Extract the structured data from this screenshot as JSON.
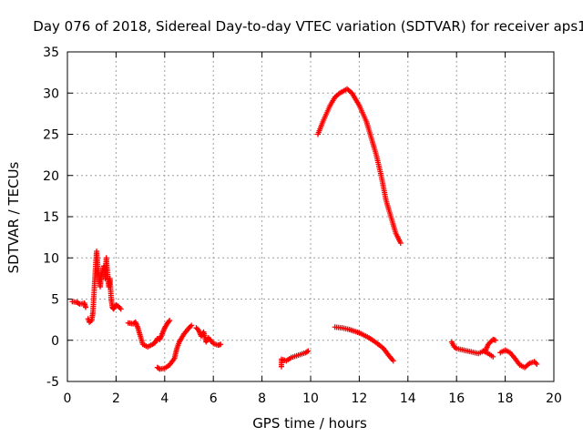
{
  "chart_data": {
    "type": "scatter",
    "title": "Day 076 of 2018, Sidereal Day-to-day VTEC variation (SDTVAR) for receiver aps1",
    "xlabel": "GPS time / hours",
    "ylabel": "SDTVAR / TECUs",
    "xlim": [
      0,
      20
    ],
    "ylim": [
      -5,
      35
    ],
    "xticks": [
      "0",
      "2",
      "4",
      "6",
      "8",
      "10",
      "12",
      "14",
      "16",
      "18",
      "20"
    ],
    "yticks": [
      "-5",
      "0",
      "5",
      "10",
      "15",
      "20",
      "25",
      "30",
      "35"
    ],
    "grid": true,
    "marker": "plus",
    "color": "#ff0000",
    "series": [
      {
        "name": "seg1",
        "points": [
          [
            0.2,
            4.7
          ],
          [
            0.4,
            4.6
          ],
          [
            0.5,
            4.4
          ],
          [
            0.7,
            4.5
          ],
          [
            0.75,
            4.0
          ]
        ]
      },
      {
        "name": "seg2",
        "points": [
          [
            0.85,
            2.6
          ],
          [
            0.9,
            2.2
          ],
          [
            1.0,
            2.4
          ],
          [
            1.05,
            3.4
          ],
          [
            1.1,
            6.0
          ],
          [
            1.15,
            8.5
          ],
          [
            1.2,
            10.8
          ],
          [
            1.25,
            9.0
          ],
          [
            1.3,
            7.5
          ],
          [
            1.35,
            6.5
          ],
          [
            1.4,
            8.0
          ],
          [
            1.5,
            9.0
          ],
          [
            1.55,
            7.5
          ],
          [
            1.6,
            10.0
          ],
          [
            1.65,
            8.0
          ],
          [
            1.7,
            6.5
          ],
          [
            1.75,
            7.5
          ],
          [
            1.8,
            5.0
          ],
          [
            1.85,
            4.0
          ],
          [
            1.9,
            3.8
          ],
          [
            2.0,
            4.3
          ],
          [
            2.1,
            4.1
          ],
          [
            2.2,
            3.8
          ]
        ]
      },
      {
        "name": "seg3",
        "points": [
          [
            2.5,
            2.1
          ],
          [
            2.7,
            2.0
          ],
          [
            2.8,
            2.2
          ],
          [
            2.9,
            1.5
          ],
          [
            3.0,
            0.5
          ],
          [
            3.1,
            -0.5
          ],
          [
            3.3,
            -0.8
          ],
          [
            3.5,
            -0.5
          ],
          [
            3.6,
            -0.3
          ],
          [
            3.7,
            0.2
          ],
          [
            3.8,
            0.1
          ],
          [
            3.9,
            0.8
          ],
          [
            4.0,
            1.5
          ],
          [
            4.1,
            2.0
          ],
          [
            4.2,
            2.4
          ]
        ]
      },
      {
        "name": "seg4",
        "points": [
          [
            3.7,
            -3.3
          ],
          [
            3.8,
            -3.5
          ],
          [
            4.0,
            -3.4
          ],
          [
            4.2,
            -3.0
          ],
          [
            4.4,
            -2.2
          ],
          [
            4.5,
            -1.0
          ],
          [
            4.6,
            -0.2
          ],
          [
            4.7,
            0.3
          ],
          [
            4.8,
            0.8
          ],
          [
            5.0,
            1.5
          ],
          [
            5.1,
            1.8
          ]
        ]
      },
      {
        "name": "seg5",
        "points": [
          [
            5.3,
            1.5
          ],
          [
            5.4,
            1.2
          ],
          [
            5.5,
            0.5
          ],
          [
            5.6,
            1.0
          ],
          [
            5.7,
            -0.2
          ],
          [
            5.8,
            0.3
          ],
          [
            6.0,
            -0.4
          ],
          [
            6.2,
            -0.6
          ],
          [
            6.3,
            -0.5
          ]
        ]
      },
      {
        "name": "seg6",
        "points": [
          [
            8.8,
            -3.2
          ],
          [
            8.8,
            -2.3
          ],
          [
            9.0,
            -2.5
          ],
          [
            9.2,
            -2.1
          ],
          [
            9.5,
            -1.8
          ],
          [
            9.8,
            -1.5
          ],
          [
            9.9,
            -1.3
          ]
        ]
      },
      {
        "name": "seg7",
        "points": [
          [
            10.3,
            25.0
          ],
          [
            10.5,
            26.5
          ],
          [
            10.8,
            28.5
          ],
          [
            11.0,
            29.5
          ],
          [
            11.2,
            30.0
          ],
          [
            11.5,
            30.5
          ],
          [
            11.7,
            30.0
          ],
          [
            12.0,
            28.5
          ],
          [
            12.3,
            26.5
          ],
          [
            12.5,
            24.5
          ],
          [
            12.7,
            22.5
          ],
          [
            12.9,
            20.0
          ],
          [
            13.1,
            17.0
          ],
          [
            13.3,
            15.0
          ],
          [
            13.5,
            13.0
          ],
          [
            13.7,
            11.8
          ]
        ]
      },
      {
        "name": "seg8",
        "points": [
          [
            11.0,
            1.6
          ],
          [
            11.3,
            1.5
          ],
          [
            11.6,
            1.3
          ],
          [
            12.0,
            0.9
          ],
          [
            12.4,
            0.3
          ],
          [
            12.7,
            -0.3
          ],
          [
            13.0,
            -1.0
          ],
          [
            13.2,
            -1.8
          ],
          [
            13.4,
            -2.5
          ]
        ]
      },
      {
        "name": "seg9",
        "points": [
          [
            15.8,
            -0.2
          ],
          [
            15.9,
            -0.8
          ],
          [
            16.0,
            -1.0
          ],
          [
            16.3,
            -1.2
          ],
          [
            16.6,
            -1.4
          ],
          [
            16.9,
            -1.6
          ],
          [
            17.2,
            -1.2
          ],
          [
            17.3,
            -0.5
          ],
          [
            17.5,
            0.1
          ],
          [
            17.6,
            0.0
          ]
        ]
      },
      {
        "name": "seg10",
        "points": [
          [
            17.1,
            -1.3
          ],
          [
            17.3,
            -1.6
          ],
          [
            17.5,
            -2.0
          ]
        ]
      },
      {
        "name": "seg11",
        "points": [
          [
            17.8,
            -1.5
          ],
          [
            18.0,
            -1.2
          ],
          [
            18.2,
            -1.5
          ],
          [
            18.4,
            -2.2
          ],
          [
            18.6,
            -3.0
          ],
          [
            18.8,
            -3.3
          ],
          [
            19.0,
            -2.8
          ],
          [
            19.2,
            -2.6
          ],
          [
            19.3,
            -2.9
          ]
        ]
      }
    ]
  }
}
